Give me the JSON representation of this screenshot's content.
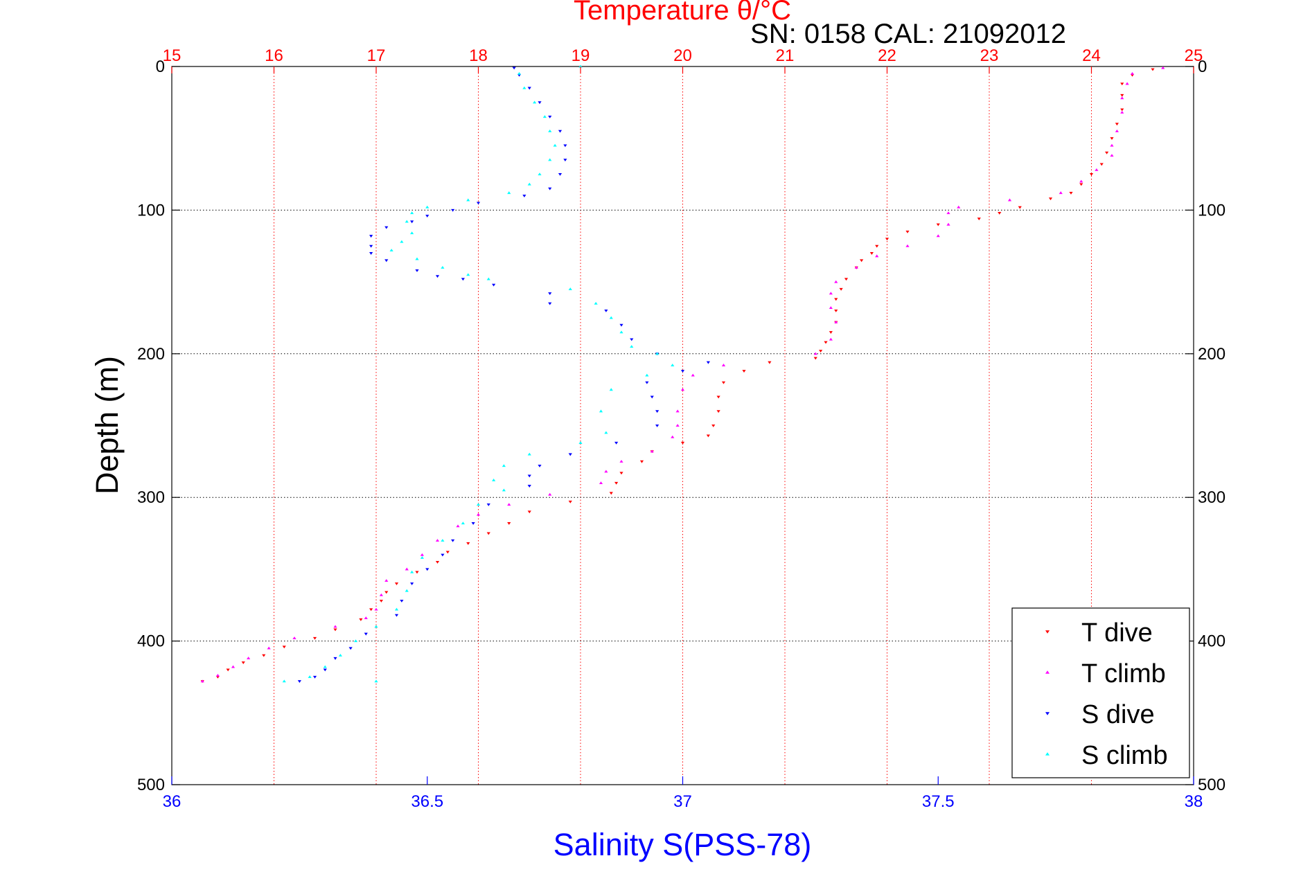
{
  "chart_data": {
    "type": "scatter",
    "title": "Temperature θ/°C",
    "subtitle": "SN: 0158  CAL: 21092012",
    "xlabel": "Salinity S(PSS-78)",
    "ylabel": "Depth (m)",
    "x_bottom": {
      "label": "Salinity S(PSS-78)",
      "lim": [
        36,
        38
      ],
      "ticks": [
        "36",
        "36.5",
        "37",
        "37.5",
        "38"
      ],
      "color": "#0000ff"
    },
    "x_top": {
      "label": "Temperature θ/°C",
      "lim": [
        15,
        25
      ],
      "ticks": [
        "15",
        "16",
        "17",
        "18",
        "19",
        "20",
        "21",
        "22",
        "23",
        "24",
        "25"
      ],
      "color": "#ff0000"
    },
    "y": {
      "lim": [
        0,
        500
      ],
      "reversed": true,
      "ticks": [
        "0",
        "100",
        "200",
        "300",
        "400",
        "500"
      ]
    },
    "grid": true,
    "legend_position": "bottom-right",
    "series": [
      {
        "name": "T dive",
        "axis": "temperature",
        "color": "#ff0000",
        "marker": "triangle-down",
        "points": [
          [
            24.6,
            2
          ],
          [
            24.4,
            6
          ],
          [
            24.3,
            12
          ],
          [
            24.3,
            20
          ],
          [
            24.3,
            30
          ],
          [
            24.25,
            40
          ],
          [
            24.2,
            50
          ],
          [
            24.15,
            60
          ],
          [
            24.1,
            68
          ],
          [
            24.0,
            75
          ],
          [
            23.9,
            82
          ],
          [
            23.8,
            88
          ],
          [
            23.6,
            92
          ],
          [
            23.3,
            98
          ],
          [
            23.1,
            102
          ],
          [
            22.9,
            106
          ],
          [
            22.5,
            110
          ],
          [
            22.2,
            115
          ],
          [
            22.0,
            120
          ],
          [
            21.9,
            125
          ],
          [
            21.85,
            130
          ],
          [
            21.75,
            135
          ],
          [
            21.7,
            140
          ],
          [
            21.6,
            148
          ],
          [
            21.55,
            155
          ],
          [
            21.5,
            162
          ],
          [
            21.5,
            170
          ],
          [
            21.5,
            178
          ],
          [
            21.45,
            185
          ],
          [
            21.4,
            192
          ],
          [
            21.35,
            198
          ],
          [
            21.3,
            203
          ],
          [
            20.85,
            206
          ],
          [
            20.6,
            212
          ],
          [
            20.4,
            220
          ],
          [
            20.35,
            230
          ],
          [
            20.35,
            240
          ],
          [
            20.3,
            250
          ],
          [
            20.25,
            257
          ],
          [
            20.0,
            262
          ],
          [
            19.7,
            268
          ],
          [
            19.6,
            275
          ],
          [
            19.4,
            283
          ],
          [
            19.35,
            290
          ],
          [
            19.3,
            297
          ],
          [
            18.9,
            303
          ],
          [
            18.5,
            310
          ],
          [
            18.3,
            318
          ],
          [
            18.1,
            325
          ],
          [
            17.9,
            332
          ],
          [
            17.7,
            338
          ],
          [
            17.6,
            345
          ],
          [
            17.4,
            352
          ],
          [
            17.2,
            360
          ],
          [
            17.1,
            366
          ],
          [
            17.05,
            372
          ],
          [
            16.95,
            378
          ],
          [
            16.85,
            385
          ],
          [
            16.6,
            392
          ],
          [
            16.4,
            398
          ],
          [
            16.1,
            404
          ],
          [
            15.9,
            410
          ],
          [
            15.7,
            415
          ],
          [
            15.55,
            420
          ],
          [
            15.45,
            425
          ],
          [
            15.3,
            428
          ]
        ]
      },
      {
        "name": "T climb",
        "axis": "temperature",
        "color": "#ff00ff",
        "marker": "triangle-up",
        "points": [
          [
            24.7,
            1
          ],
          [
            24.4,
            5
          ],
          [
            24.35,
            12
          ],
          [
            24.3,
            22
          ],
          [
            24.3,
            32
          ],
          [
            24.25,
            45
          ],
          [
            24.2,
            55
          ],
          [
            24.2,
            62
          ],
          [
            24.05,
            72
          ],
          [
            23.9,
            80
          ],
          [
            23.7,
            88
          ],
          [
            23.2,
            93
          ],
          [
            22.7,
            98
          ],
          [
            22.6,
            102
          ],
          [
            22.6,
            110
          ],
          [
            22.5,
            118
          ],
          [
            22.2,
            125
          ],
          [
            21.9,
            132
          ],
          [
            21.7,
            140
          ],
          [
            21.5,
            150
          ],
          [
            21.45,
            158
          ],
          [
            21.45,
            168
          ],
          [
            21.5,
            178
          ],
          [
            21.45,
            190
          ],
          [
            21.3,
            200
          ],
          [
            20.4,
            208
          ],
          [
            20.1,
            215
          ],
          [
            20.0,
            225
          ],
          [
            19.95,
            240
          ],
          [
            19.95,
            250
          ],
          [
            19.9,
            258
          ],
          [
            19.7,
            268
          ],
          [
            19.4,
            275
          ],
          [
            19.25,
            282
          ],
          [
            19.2,
            290
          ],
          [
            18.7,
            298
          ],
          [
            18.3,
            305
          ],
          [
            18.0,
            312
          ],
          [
            17.8,
            320
          ],
          [
            17.6,
            330
          ],
          [
            17.45,
            340
          ],
          [
            17.3,
            350
          ],
          [
            17.1,
            358
          ],
          [
            17.05,
            368
          ],
          [
            17.0,
            378
          ],
          [
            16.9,
            384
          ],
          [
            16.6,
            390
          ],
          [
            16.2,
            398
          ],
          [
            15.95,
            405
          ],
          [
            15.75,
            412
          ],
          [
            15.6,
            418
          ],
          [
            15.45,
            424
          ],
          [
            15.3,
            428
          ]
        ]
      },
      {
        "name": "S dive",
        "axis": "salinity",
        "color": "#0000ff",
        "marker": "triangle-down",
        "points": [
          [
            36.67,
            1
          ],
          [
            36.68,
            6
          ],
          [
            36.7,
            15
          ],
          [
            36.72,
            25
          ],
          [
            36.74,
            35
          ],
          [
            36.76,
            45
          ],
          [
            36.77,
            55
          ],
          [
            36.77,
            65
          ],
          [
            36.76,
            75
          ],
          [
            36.74,
            85
          ],
          [
            36.69,
            90
          ],
          [
            36.6,
            95
          ],
          [
            36.55,
            100
          ],
          [
            36.5,
            104
          ],
          [
            36.47,
            108
          ],
          [
            36.42,
            112
          ],
          [
            36.39,
            118
          ],
          [
            36.39,
            125
          ],
          [
            36.39,
            130
          ],
          [
            36.42,
            135
          ],
          [
            36.48,
            142
          ],
          [
            36.52,
            146
          ],
          [
            36.57,
            148
          ],
          [
            36.63,
            152
          ],
          [
            36.74,
            158
          ],
          [
            36.74,
            165
          ],
          [
            36.85,
            170
          ],
          [
            36.88,
            180
          ],
          [
            36.9,
            190
          ],
          [
            36.95,
            200
          ],
          [
            37.05,
            206
          ],
          [
            37.0,
            212
          ],
          [
            36.93,
            220
          ],
          [
            36.94,
            230
          ],
          [
            36.95,
            240
          ],
          [
            36.95,
            250
          ],
          [
            36.87,
            262
          ],
          [
            36.78,
            270
          ],
          [
            36.72,
            278
          ],
          [
            36.7,
            285
          ],
          [
            36.7,
            292
          ],
          [
            36.62,
            305
          ],
          [
            36.59,
            318
          ],
          [
            36.55,
            330
          ],
          [
            36.53,
            340
          ],
          [
            36.5,
            350
          ],
          [
            36.47,
            360
          ],
          [
            36.45,
            372
          ],
          [
            36.44,
            382
          ],
          [
            36.38,
            395
          ],
          [
            36.35,
            405
          ],
          [
            36.32,
            412
          ],
          [
            36.3,
            420
          ],
          [
            36.28,
            425
          ],
          [
            36.25,
            428
          ]
        ]
      },
      {
        "name": "S climb",
        "axis": "salinity",
        "color": "#00ffff",
        "marker": "triangle-up",
        "points": [
          [
            36.8,
            0
          ],
          [
            36.68,
            5
          ],
          [
            36.69,
            15
          ],
          [
            36.71,
            25
          ],
          [
            36.73,
            35
          ],
          [
            36.74,
            45
          ],
          [
            36.75,
            55
          ],
          [
            36.74,
            65
          ],
          [
            36.72,
            75
          ],
          [
            36.7,
            82
          ],
          [
            36.66,
            88
          ],
          [
            36.58,
            93
          ],
          [
            36.5,
            98
          ],
          [
            36.47,
            102
          ],
          [
            36.46,
            108
          ],
          [
            36.47,
            116
          ],
          [
            36.45,
            122
          ],
          [
            36.43,
            128
          ],
          [
            36.48,
            134
          ],
          [
            36.53,
            140
          ],
          [
            36.58,
            145
          ],
          [
            36.62,
            148
          ],
          [
            36.78,
            155
          ],
          [
            36.83,
            165
          ],
          [
            36.86,
            175
          ],
          [
            36.88,
            185
          ],
          [
            36.9,
            195
          ],
          [
            36.95,
            200
          ],
          [
            36.98,
            208
          ],
          [
            36.93,
            215
          ],
          [
            36.86,
            225
          ],
          [
            36.84,
            240
          ],
          [
            36.85,
            255
          ],
          [
            36.8,
            262
          ],
          [
            36.7,
            270
          ],
          [
            36.65,
            278
          ],
          [
            36.63,
            288
          ],
          [
            36.65,
            295
          ],
          [
            36.6,
            305
          ],
          [
            36.57,
            318
          ],
          [
            36.53,
            330
          ],
          [
            36.49,
            342
          ],
          [
            36.47,
            352
          ],
          [
            36.46,
            365
          ],
          [
            36.44,
            378
          ],
          [
            36.4,
            390
          ],
          [
            36.36,
            400
          ],
          [
            36.33,
            410
          ],
          [
            36.3,
            418
          ],
          [
            36.27,
            425
          ],
          [
            36.22,
            428
          ],
          [
            36.4,
            428
          ]
        ]
      }
    ]
  }
}
